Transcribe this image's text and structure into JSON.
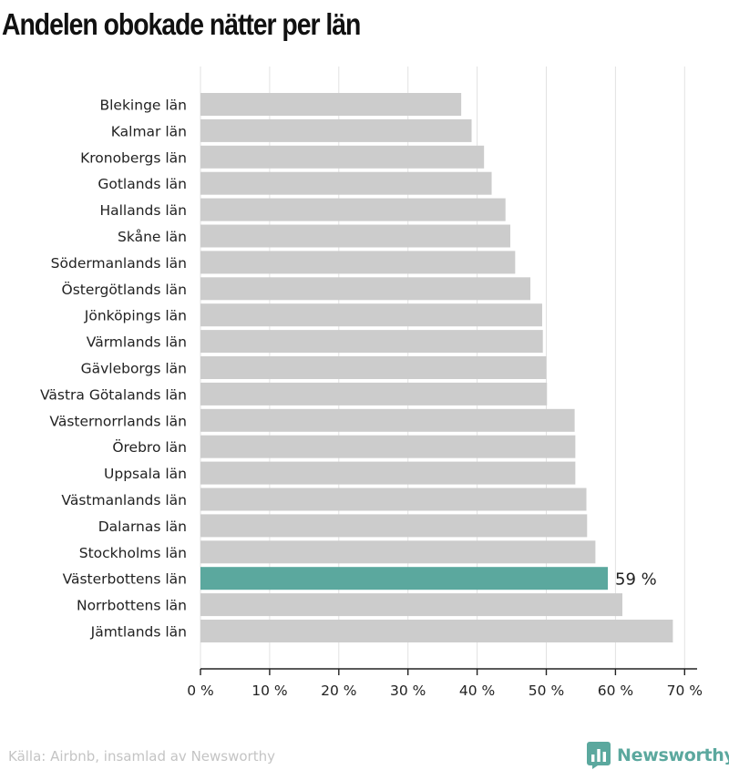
{
  "title": "Andelen obokade nätter per län",
  "source": "Källa: Airbnb, insamlad av Newsworthy",
  "brand": {
    "name": "Newsworthy",
    "icon": "newsworthy-logo-icon",
    "color": "#5ba89e"
  },
  "colors": {
    "bar": "#cccccc",
    "highlight": "#5ba89e",
    "grid": "#e2e2e2",
    "axis": "#222222",
    "label": "#222222"
  },
  "chart_data": {
    "type": "bar",
    "orientation": "horizontal",
    "title": "Andelen obokade nätter per län",
    "xlabel": "",
    "ylabel": "",
    "unit": "%",
    "xlim": [
      0,
      72
    ],
    "x_ticks": [
      0,
      10,
      20,
      30,
      40,
      50,
      60,
      70
    ],
    "x_tick_labels": [
      "0 %",
      "10 %",
      "20 %",
      "30 %",
      "40 %",
      "50 %",
      "60 %",
      "70 %"
    ],
    "grid": true,
    "categories": [
      "Blekinge län",
      "Kalmar län",
      "Kronobergs län",
      "Gotlands län",
      "Hallands län",
      "Skåne län",
      "Södermanlands län",
      "Östergötlands län",
      "Jönköpings län",
      "Värmlands län",
      "Gävleborgs län",
      "Västra Götalands län",
      "Västernorrlands län",
      "Örebro län",
      "Uppsala län",
      "Västmanlands län",
      "Dalarnas län",
      "Stockholms län",
      "Västerbottens län",
      "Norrbottens län",
      "Jämtlands län"
    ],
    "values": [
      37.7,
      39.2,
      41.0,
      42.1,
      44.1,
      44.8,
      45.5,
      47.7,
      49.4,
      49.5,
      50.0,
      50.1,
      54.1,
      54.2,
      54.2,
      55.8,
      55.9,
      57.1,
      58.9,
      61.0,
      68.3
    ],
    "highlight": {
      "category": "Västerbottens län",
      "label": "59 %"
    }
  }
}
